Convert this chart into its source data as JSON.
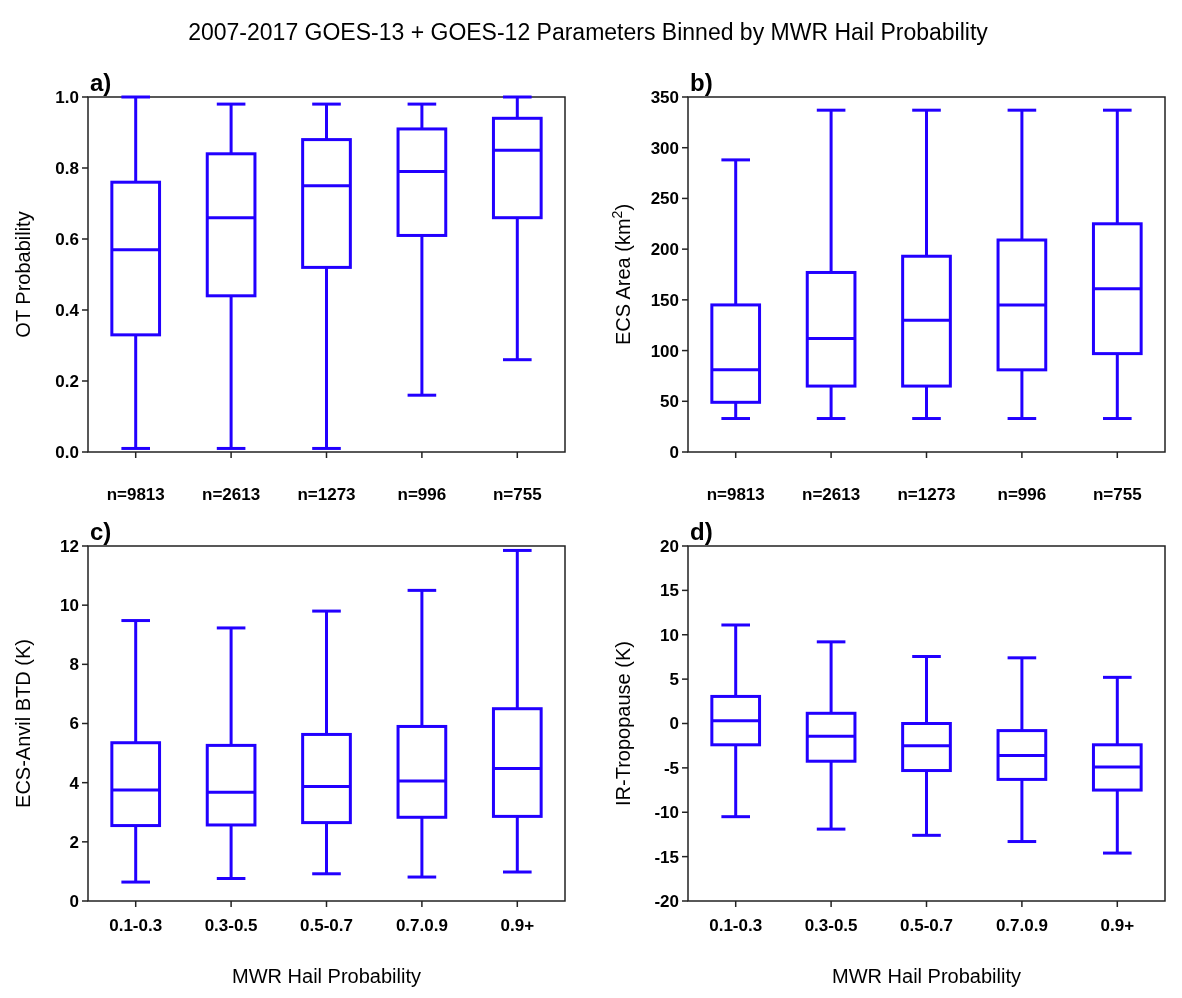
{
  "chart_data": [
    {
      "type": "box",
      "title": "2007-2017 GOES-13 + GOES-12 Parameters Binned by MWR Hail Probability",
      "annotations": [
        "a)"
      ],
      "ylabel": "OT Probability",
      "categories": [
        "n=9813",
        "n=2613",
        "n=1273",
        "n=996",
        "n=755"
      ],
      "ylim": [
        0,
        1
      ],
      "yticks": [
        {
          "value": 0,
          "label": "0.0"
        },
        0.2,
        0.4,
        0.6,
        0.8,
        {
          "value": 1,
          "label": "1.0"
        }
      ],
      "series": [
        {
          "color": "#2200ff",
          "boxes": [
            {
              "low": 0.01,
              "q1": 0.33,
              "median": 0.57,
              "q3": 0.76,
              "high": 1.0
            },
            {
              "low": 0.01,
              "q1": 0.44,
              "median": 0.66,
              "q3": 0.84,
              "high": 0.98
            },
            {
              "low": 0.01,
              "q1": 0.52,
              "median": 0.75,
              "q3": 0.88,
              "high": 0.98
            },
            {
              "low": 0.16,
              "q1": 0.61,
              "median": 0.79,
              "q3": 0.91,
              "high": 0.98
            },
            {
              "low": 0.26,
              "q1": 0.66,
              "median": 0.85,
              "q3": 0.94,
              "high": 1.0
            }
          ]
        }
      ]
    },
    {
      "type": "box",
      "annotations": [
        "b)"
      ],
      "ylabel": "ECS Area (km$^{2}$)",
      "categories": [
        "n=9813",
        "n=2613",
        "n=1273",
        "n=996",
        "n=755"
      ],
      "ylim": [
        0,
        350
      ],
      "yticks": [
        0,
        50,
        100,
        150,
        200,
        250,
        300,
        350
      ],
      "series": [
        {
          "color": "#2200ff",
          "boxes": [
            {
              "low": 33,
              "q1": 49,
              "median": 81,
              "q3": 145,
              "high": 288
            },
            {
              "low": 33,
              "q1": 65,
              "median": 112,
              "q3": 177,
              "high": 337
            },
            {
              "low": 33,
              "q1": 65,
              "median": 130,
              "q3": 193,
              "high": 337
            },
            {
              "low": 33,
              "q1": 81,
              "median": 145,
              "q3": 209,
              "high": 337
            },
            {
              "low": 33,
              "q1": 97,
              "median": 161,
              "q3": 225,
              "high": 337
            }
          ]
        }
      ]
    },
    {
      "type": "box",
      "annotations": [
        "c)"
      ],
      "xlabel": "MWR Hail Probability",
      "ylabel": "ECS-Anvil BTD (K)",
      "categories": [
        "0.1-0.3",
        "0.3-0.5",
        "0.5-0.7",
        "0.7.0.9",
        "0.9+"
      ],
      "ylim": [
        0,
        12
      ],
      "yticks": [
        0,
        2,
        4,
        6,
        8,
        10,
        12
      ],
      "series": [
        {
          "color": "#2200ff",
          "boxes": [
            {
              "low": 0.64,
              "q1": 2.55,
              "median": 3.75,
              "q3": 5.35,
              "high": 9.48
            },
            {
              "low": 0.76,
              "q1": 2.57,
              "median": 3.68,
              "q3": 5.26,
              "high": 9.23
            },
            {
              "low": 0.92,
              "q1": 2.65,
              "median": 3.87,
              "q3": 5.63,
              "high": 9.8
            },
            {
              "low": 0.81,
              "q1": 2.83,
              "median": 4.06,
              "q3": 5.9,
              "high": 10.5
            },
            {
              "low": 0.98,
              "q1": 2.86,
              "median": 4.48,
              "q3": 6.5,
              "high": 11.85
            }
          ]
        }
      ]
    },
    {
      "type": "box",
      "annotations": [
        "d)"
      ],
      "xlabel": "MWR Hail Probability",
      "ylabel": "IR-Tropopause (K)",
      "categories": [
        "0.1-0.3",
        "0.3-0.5",
        "0.5-0.7",
        "0.7.0.9",
        "0.9+"
      ],
      "ylim": [
        -20,
        20
      ],
      "yticks": [
        -20,
        -15,
        -10,
        -5,
        0,
        5,
        10,
        15,
        20
      ],
      "series": [
        {
          "color": "#2200ff",
          "boxes": [
            {
              "low": -10.5,
              "q1": -2.4,
              "median": 0.3,
              "q3": 3.05,
              "high": 11.1
            },
            {
              "low": -11.9,
              "q1": -4.25,
              "median": -1.45,
              "q3": 1.15,
              "high": 9.2
            },
            {
              "low": -12.6,
              "q1": -5.3,
              "median": -2.5,
              "q3": 0,
              "high": 7.55
            },
            {
              "low": -13.3,
              "q1": -6.3,
              "median": -3.6,
              "q3": -0.8,
              "high": 7.4
            },
            {
              "low": -14.6,
              "q1": -7.5,
              "median": -4.9,
              "q3": -2.4,
              "high": 5.2
            }
          ]
        }
      ]
    }
  ]
}
